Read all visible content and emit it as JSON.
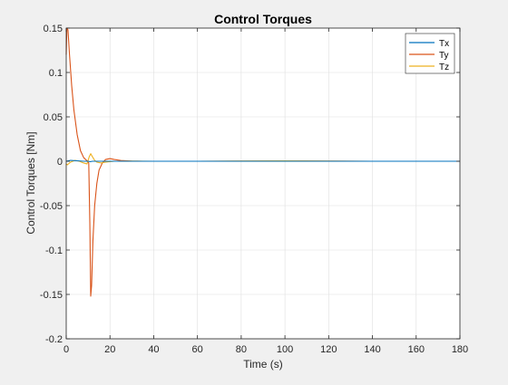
{
  "chart_data": {
    "type": "line",
    "title": "Control Torques",
    "xlabel": "Time (s)",
    "ylabel": "Control Torques [Nm]",
    "xlim": [
      0,
      180
    ],
    "ylim": [
      -0.2,
      0.15
    ],
    "xticks": [
      0,
      20,
      40,
      60,
      80,
      100,
      120,
      140,
      160,
      180
    ],
    "xtick_labels": [
      "0",
      "20",
      "40",
      "60",
      "80",
      "100",
      "120",
      "140",
      "160",
      "180"
    ],
    "yticks": [
      -0.2,
      -0.15,
      -0.1,
      -0.05,
      0,
      0.05,
      0.1,
      0.15
    ],
    "ytick_labels": [
      "-0.2",
      "-0.15",
      "-0.1",
      "-0.05",
      "0",
      "0.05",
      "0.1",
      "0.15"
    ],
    "grid": true,
    "legend_position": "top-right",
    "series": [
      {
        "name": "Tx",
        "color": "#0072BD",
        "x": [
          0,
          2,
          5,
          8,
          10,
          11,
          12,
          14,
          20,
          30,
          60,
          100,
          140,
          180
        ],
        "y": [
          0,
          0.001,
          0.0005,
          0,
          0,
          -0.0005,
          0,
          0,
          0,
          0,
          0,
          0,
          0,
          0
        ]
      },
      {
        "name": "Ty",
        "color": "#D95319",
        "x": [
          0,
          0.3,
          0.8,
          1.5,
          2.5,
          3.5,
          5,
          6.5,
          8,
          9.5,
          10.3,
          10.8,
          11.2,
          11.6,
          12.2,
          13,
          14,
          15,
          16.5,
          18,
          20,
          22,
          25,
          30,
          35,
          40,
          60,
          100,
          140,
          180
        ],
        "y": [
          0.12,
          0.15,
          0.148,
          0.12,
          0.085,
          0.058,
          0.03,
          0.012,
          0.004,
          0.0005,
          -0.002,
          -0.07,
          -0.152,
          -0.14,
          -0.09,
          -0.05,
          -0.025,
          -0.01,
          -0.002,
          0.002,
          0.003,
          0.002,
          0.0008,
          0.0002,
          0,
          0,
          0,
          0.0003,
          0,
          0
        ]
      },
      {
        "name": "Tz",
        "color": "#EDB120",
        "x": [
          0,
          0.5,
          2,
          4,
          6,
          8,
          9.5,
          10.5,
          11.2,
          12,
          13,
          14,
          16,
          18,
          22,
          30,
          40,
          60,
          100,
          140,
          180
        ],
        "y": [
          -0.003,
          -0.004,
          -0.001,
          0.001,
          0,
          -0.002,
          -0.003,
          0.005,
          0.0085,
          0.005,
          0.001,
          -0.001,
          -0.002,
          -0.001,
          0,
          0.0002,
          0,
          0,
          0.0004,
          0,
          0
        ]
      }
    ]
  }
}
